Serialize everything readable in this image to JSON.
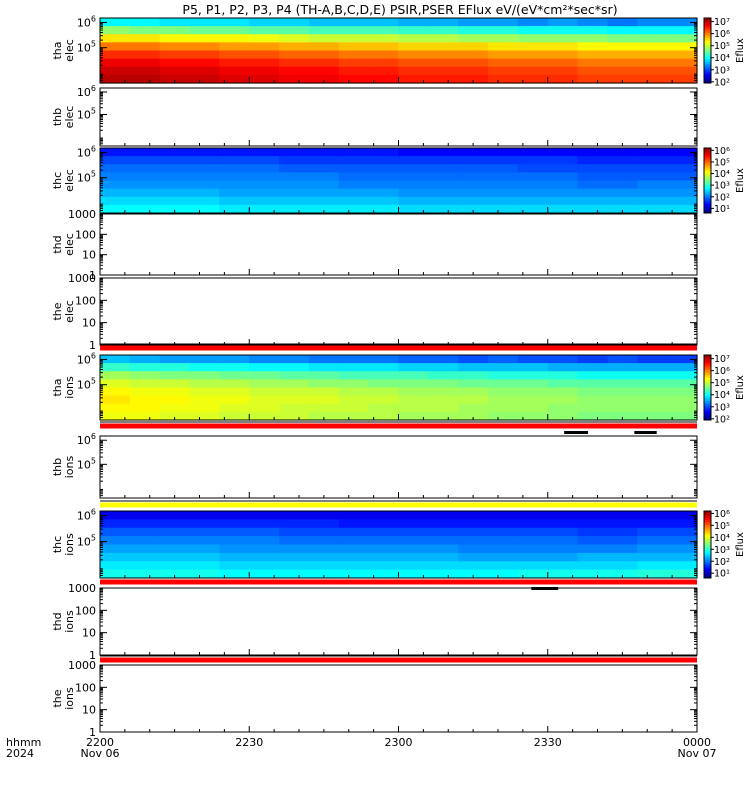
{
  "title": "P5, P1, P2, P3, P4 (TH-A,B,C,D,E) PSIR,PSER EFlux eV/(eV*cm²*sec*sr)",
  "colors": {
    "bar_red": "#ff0000",
    "bar_yellow": "#ffff00"
  },
  "chart_data": {
    "type": "heatmap",
    "x_axis": {
      "row_labels": [
        "hhmm",
        "2024"
      ],
      "ticks": [
        "2200",
        "2230",
        "2300",
        "2330",
        "0000"
      ],
      "tick_hours": [
        22.0,
        22.5,
        23.0,
        23.5,
        24.0
      ],
      "dates": [
        "Nov 06",
        "Nov 07"
      ],
      "range_hours": [
        22.0,
        24.0
      ]
    },
    "panels": [
      {
        "id": "tha-elec",
        "label": [
          "tha",
          "elec"
        ],
        "ylim": [
          4000,
          1500000
        ],
        "yscale": "log",
        "yticks": [
          {
            "base": "10",
            "exp": "6",
            "v": 1000000
          },
          {
            "base": "10",
            "exp": "5",
            "v": 100000
          }
        ],
        "spectrogram": "elec_a",
        "colorbar": {
          "label": "Eflux",
          "ticks": [
            "10⁷",
            "10⁶",
            "10⁵",
            "10⁴",
            "10³",
            "10²"
          ],
          "exps": [
            7,
            6,
            5,
            4,
            3,
            2
          ],
          "range_exp": [
            1.9,
            7.3
          ]
        }
      },
      {
        "id": "thb-elec",
        "label": [
          "thb",
          "elec"
        ],
        "ylim": [
          4000,
          1500000
        ],
        "yscale": "log",
        "yticks": [
          {
            "base": "10",
            "exp": "6",
            "v": 1000000
          },
          {
            "base": "10",
            "exp": "5",
            "v": 100000
          }
        ]
      },
      {
        "id": "thc-elec",
        "label": [
          "thc",
          "elec"
        ],
        "ylim": [
          4000,
          1500000
        ],
        "yscale": "log",
        "yticks": [
          {
            "base": "10",
            "exp": "6",
            "v": 1000000
          },
          {
            "base": "10",
            "exp": "5",
            "v": 100000
          }
        ],
        "spectrogram": "elec_c",
        "colorbar": {
          "label": "Eflux",
          "ticks": [
            "10⁶",
            "10⁵",
            "10⁴",
            "10³",
            "10²",
            "10¹"
          ],
          "exps": [
            6,
            5,
            4,
            3,
            2,
            1
          ],
          "range_exp": [
            0.6,
            6.2
          ]
        }
      },
      {
        "id": "thd-elec",
        "label": [
          "thd",
          "elec"
        ],
        "ylim": [
          1,
          1000
        ],
        "yscale": "log",
        "yticks": [
          {
            "text": "1000",
            "v": 1000
          },
          {
            "text": "100",
            "v": 100
          },
          {
            "text": "10",
            "v": 10
          },
          {
            "text": "1",
            "v": 1
          }
        ]
      },
      {
        "id": "the-elec",
        "label": [
          "the",
          "elec"
        ],
        "ylim": [
          1,
          1000
        ],
        "yscale": "log",
        "yticks": [
          {
            "text": "1000",
            "v": 1000
          },
          {
            "text": "100",
            "v": 100
          },
          {
            "text": "10",
            "v": 10
          },
          {
            "text": "1",
            "v": 1
          }
        ]
      },
      {
        "id": "tha-ions",
        "label": [
          "tha",
          "ions"
        ],
        "ylim": [
          4000,
          1500000
        ],
        "yscale": "log",
        "yticks": [
          {
            "base": "10",
            "exp": "6",
            "v": 1000000
          },
          {
            "base": "10",
            "exp": "5",
            "v": 100000
          }
        ],
        "spectrogram": "ions_a",
        "colorbar": {
          "label": "Eflux",
          "ticks": [
            "10⁷",
            "10⁶",
            "10⁵",
            "10⁴",
            "10³",
            "10²"
          ],
          "exps": [
            7,
            6,
            5,
            4,
            3,
            2
          ],
          "range_exp": [
            1.9,
            7.3
          ]
        }
      },
      {
        "id": "thb-ions",
        "label": [
          "thb",
          "ions"
        ],
        "ylim": [
          4000,
          1500000
        ],
        "yscale": "log",
        "yticks": [
          {
            "base": "10",
            "exp": "6",
            "v": 1000000
          },
          {
            "base": "10",
            "exp": "5",
            "v": 100000
          }
        ]
      },
      {
        "id": "thc-ions",
        "label": [
          "thc",
          "ions"
        ],
        "ylim": [
          4000,
          1500000
        ],
        "yscale": "log",
        "yticks": [
          {
            "base": "10",
            "exp": "6",
            "v": 1000000
          },
          {
            "base": "10",
            "exp": "5",
            "v": 100000
          }
        ],
        "spectrogram": "ions_c",
        "colorbar": {
          "label": "Eflux",
          "ticks": [
            "10⁶",
            "10⁵",
            "10⁴",
            "10³",
            "10²",
            "10¹"
          ],
          "exps": [
            6,
            5,
            4,
            3,
            2,
            1
          ],
          "range_exp": [
            0.6,
            6.2
          ]
        }
      },
      {
        "id": "thd-ions",
        "label": [
          "thd",
          "ions"
        ],
        "ylim": [
          1,
          1000
        ],
        "yscale": "log",
        "yticks": [
          {
            "text": "1000",
            "v": 1000
          },
          {
            "text": "100",
            "v": 100
          },
          {
            "text": "10",
            "v": 10
          },
          {
            "text": "1",
            "v": 1
          }
        ]
      },
      {
        "id": "the-ions",
        "label": [
          "the",
          "ions"
        ],
        "ylim": [
          1,
          1000
        ],
        "yscale": "log",
        "yticks": [
          {
            "text": "1000",
            "v": 1000
          },
          {
            "text": "100",
            "v": 100
          },
          {
            "text": "10",
            "v": 10
          },
          {
            "text": "1",
            "v": 1
          }
        ]
      }
    ],
    "status_bars": [
      {
        "after_panel": "the-elec",
        "color": "red"
      },
      {
        "after_panel": "tha-ions",
        "color": "red"
      },
      {
        "after_panel": "thb-ions",
        "color": "yellow"
      },
      {
        "after_panel": "thc-ions",
        "color": "red"
      },
      {
        "after_panel": "thd-ions",
        "color": "red"
      }
    ],
    "gap_marks": [
      {
        "after_panel": "tha-ions",
        "start_hours": 23.555,
        "end_hours": 23.635
      },
      {
        "after_panel": "tha-ions",
        "start_hours": 23.79,
        "end_hours": 23.865
      },
      {
        "after_panel": "thc-ions",
        "start_hours": 23.445,
        "end_hours": 23.535
      }
    ],
    "spectrograms": {
      "elec_a": {
        "x_hours": [
          22.0,
          22.1,
          22.2,
          22.3,
          22.4,
          22.5,
          22.6,
          22.7,
          22.8,
          22.9,
          23.0,
          23.1,
          23.2,
          23.3,
          23.4,
          23.5,
          23.6,
          23.7,
          23.8,
          23.9
        ],
        "energy_ev": [
          1300000,
          800000,
          500000,
          300000,
          180000,
          110000,
          70000,
          40000
        ],
        "log_eflux": [
          [
            3.9,
            3.9,
            3.8,
            3.8,
            3.8,
            3.7,
            3.7,
            3.6,
            3.6,
            3.6,
            3.5,
            3.5,
            3.4,
            3.4,
            3.3,
            3.4,
            3.3,
            3.2,
            3.3,
            3.3
          ],
          [
            4.7,
            4.6,
            4.6,
            4.5,
            4.5,
            4.4,
            4.4,
            4.3,
            4.3,
            4.3,
            4.2,
            4.2,
            4.1,
            4.1,
            4.0,
            4.0,
            4.0,
            3.9,
            3.9,
            3.9
          ],
          [
            5.4,
            5.4,
            5.3,
            5.3,
            5.3,
            5.2,
            5.1,
            5.0,
            5.0,
            5.0,
            4.9,
            4.9,
            4.8,
            4.8,
            4.7,
            4.7,
            4.7,
            4.6,
            4.6,
            4.6
          ],
          [
            6.0,
            6.0,
            5.9,
            5.9,
            5.8,
            5.8,
            5.7,
            5.7,
            5.6,
            5.6,
            5.5,
            5.5,
            5.5,
            5.4,
            5.4,
            5.4,
            5.3,
            5.3,
            5.3,
            5.3
          ],
          [
            6.4,
            6.4,
            6.3,
            6.3,
            6.2,
            6.2,
            6.1,
            6.1,
            6.0,
            6.0,
            5.9,
            5.9,
            5.9,
            5.8,
            5.8,
            5.8,
            5.7,
            5.7,
            5.7,
            5.7
          ],
          [
            6.7,
            6.7,
            6.6,
            6.6,
            6.5,
            6.5,
            6.4,
            6.4,
            6.3,
            6.3,
            6.2,
            6.2,
            6.2,
            6.1,
            6.1,
            6.1,
            6.0,
            6.0,
            6.0,
            6.0
          ],
          [
            6.9,
            6.9,
            6.8,
            6.8,
            6.7,
            6.7,
            6.6,
            6.6,
            6.5,
            6.5,
            6.4,
            6.4,
            6.4,
            6.3,
            6.3,
            6.3,
            6.2,
            6.2,
            6.2,
            6.2
          ],
          [
            7.0,
            7.0,
            6.9,
            6.9,
            6.8,
            6.8,
            6.7,
            6.7,
            6.6,
            6.6,
            6.5,
            6.5,
            6.5,
            6.4,
            6.4,
            6.4,
            6.3,
            6.3,
            6.3,
            6.3
          ]
        ]
      },
      "elec_c": {
        "x_hours": [
          22.0,
          22.2,
          22.4,
          22.6,
          22.8,
          23.0,
          23.2,
          23.4,
          23.6,
          23.8
        ],
        "energy_ev": [
          1300000,
          800000,
          500000,
          300000,
          180000,
          110000,
          70000,
          40000
        ],
        "log_eflux": [
          [
            1.4,
            1.4,
            1.4,
            1.4,
            1.4,
            1.3,
            1.3,
            1.3,
            1.3,
            1.3
          ],
          [
            1.7,
            1.7,
            1.7,
            1.6,
            1.6,
            1.6,
            1.6,
            1.6,
            1.5,
            1.5
          ],
          [
            1.9,
            1.9,
            1.9,
            1.8,
            1.8,
            1.8,
            1.8,
            1.7,
            1.7,
            1.7
          ],
          [
            2.0,
            2.0,
            2.0,
            2.0,
            1.9,
            1.9,
            1.9,
            1.9,
            1.8,
            1.8
          ],
          [
            2.1,
            2.1,
            2.1,
            2.1,
            2.0,
            2.0,
            2.0,
            2.0,
            1.9,
            2.0
          ],
          [
            2.3,
            2.3,
            2.2,
            2.2,
            2.2,
            2.1,
            2.1,
            2.1,
            2.1,
            2.1
          ],
          [
            2.5,
            2.5,
            2.4,
            2.4,
            2.4,
            2.3,
            2.3,
            2.3,
            2.3,
            2.3
          ],
          [
            2.7,
            2.7,
            2.6,
            2.6,
            2.6,
            2.5,
            2.5,
            2.5,
            2.5,
            2.5
          ]
        ]
      },
      "ions_a": {
        "x_hours": [
          22.0,
          22.1,
          22.2,
          22.3,
          22.4,
          22.5,
          22.6,
          22.7,
          22.8,
          22.9,
          23.0,
          23.1,
          23.2,
          23.3,
          23.4,
          23.5,
          23.6,
          23.7,
          23.8,
          23.9
        ],
        "energy_ev": [
          1300000,
          800000,
          500000,
          300000,
          180000,
          110000,
          70000,
          40000
        ],
        "log_eflux": [
          [
            3.6,
            3.5,
            3.4,
            3.4,
            3.4,
            3.3,
            3.3,
            3.2,
            3.2,
            3.2,
            3.1,
            3.1,
            3.0,
            3.1,
            3.0,
            3.0,
            2.9,
            3.0,
            2.9,
            2.9
          ],
          [
            4.2,
            4.1,
            4.1,
            4.0,
            4.0,
            3.9,
            3.9,
            3.8,
            3.8,
            3.8,
            3.7,
            3.7,
            3.6,
            3.6,
            3.6,
            3.5,
            3.5,
            3.5,
            3.5,
            3.5
          ],
          [
            4.8,
            4.7,
            4.6,
            4.6,
            4.5,
            4.5,
            4.4,
            4.4,
            4.3,
            4.3,
            4.3,
            4.2,
            4.2,
            4.1,
            4.1,
            4.1,
            4.0,
            4.0,
            4.0,
            4.0
          ],
          [
            5.1,
            5.0,
            5.0,
            4.9,
            4.9,
            4.8,
            4.8,
            4.7,
            4.7,
            4.6,
            4.6,
            4.6,
            4.5,
            4.5,
            4.5,
            4.4,
            4.4,
            4.4,
            4.4,
            4.4
          ],
          [
            5.3,
            5.2,
            5.2,
            5.1,
            5.1,
            5.0,
            5.0,
            5.0,
            4.9,
            4.9,
            4.8,
            4.8,
            4.8,
            4.7,
            4.7,
            4.7,
            4.6,
            4.6,
            4.6,
            4.6
          ],
          [
            5.4,
            5.3,
            5.3,
            5.2,
            5.2,
            5.1,
            5.1,
            5.1,
            5.0,
            5.0,
            4.9,
            4.9,
            4.9,
            4.8,
            4.8,
            4.8,
            4.7,
            4.7,
            4.7,
            4.7
          ],
          [
            5.3,
            5.3,
            5.2,
            5.2,
            5.1,
            5.1,
            5.0,
            5.0,
            5.0,
            4.9,
            4.9,
            4.9,
            4.8,
            4.8,
            4.8,
            4.7,
            4.7,
            4.7,
            4.7,
            4.7
          ],
          [
            5.2,
            5.2,
            5.1,
            5.1,
            5.0,
            5.0,
            5.0,
            4.9,
            4.9,
            4.9,
            4.8,
            4.8,
            4.8,
            4.7,
            4.7,
            4.7,
            4.6,
            4.6,
            4.6,
            4.6
          ]
        ]
      },
      "ions_c": {
        "x_hours": [
          22.0,
          22.2,
          22.4,
          22.6,
          22.8,
          23.0,
          23.2,
          23.4,
          23.6,
          23.8
        ],
        "energy_ev": [
          1300000,
          800000,
          500000,
          300000,
          180000,
          110000,
          70000,
          40000
        ],
        "log_eflux": [
          [
            1.2,
            1.2,
            1.2,
            1.2,
            1.2,
            1.2,
            1.2,
            1.2,
            1.2,
            1.2
          ],
          [
            1.5,
            1.5,
            1.5,
            1.5,
            1.4,
            1.4,
            1.4,
            1.4,
            1.4,
            1.4
          ],
          [
            1.8,
            1.8,
            1.8,
            1.7,
            1.7,
            1.7,
            1.7,
            1.7,
            1.6,
            1.7
          ],
          [
            2.0,
            2.0,
            2.0,
            1.9,
            1.9,
            1.9,
            1.9,
            1.9,
            1.8,
            1.9
          ],
          [
            2.2,
            2.2,
            2.1,
            2.1,
            2.1,
            2.1,
            2.0,
            2.0,
            2.0,
            2.1
          ],
          [
            2.4,
            2.4,
            2.3,
            2.3,
            2.3,
            2.3,
            2.2,
            2.2,
            2.3,
            2.3
          ],
          [
            2.6,
            2.6,
            2.5,
            2.5,
            2.5,
            2.5,
            2.5,
            2.5,
            2.5,
            2.6
          ],
          [
            2.8,
            2.8,
            2.7,
            2.7,
            2.7,
            2.7,
            2.7,
            2.8,
            2.8,
            2.9
          ]
        ]
      }
    }
  }
}
